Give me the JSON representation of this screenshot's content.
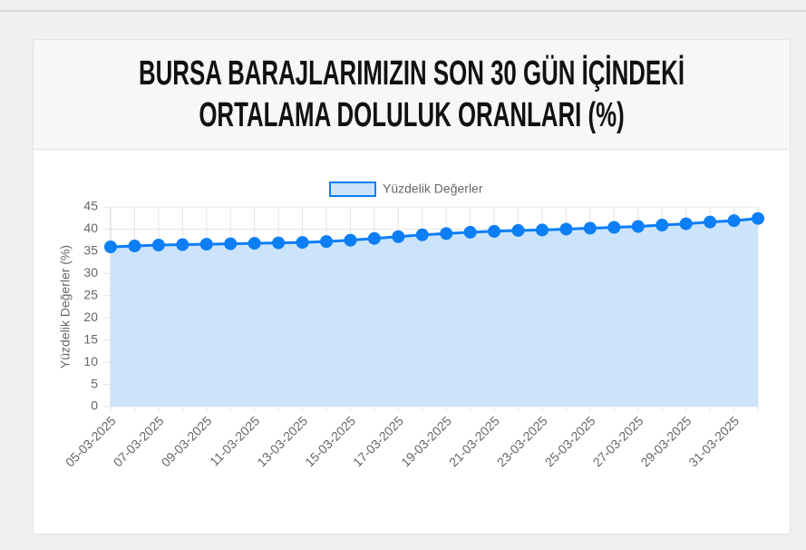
{
  "chart_data": {
    "type": "line",
    "title": "BURSA BARAJLARIMIZIN SON 30 GÜN İÇİNDEKİ ORTALAMA DOLULUK ORANLARI (%)",
    "categories": [
      "05-03-2025",
      null,
      "07-03-2025",
      null,
      "09-03-2025",
      null,
      "11-03-2025",
      null,
      "13-03-2025",
      null,
      "15-03-2025",
      null,
      "17-03-2025",
      null,
      "19-03-2025",
      null,
      "21-03-2025",
      null,
      "23-03-2025",
      null,
      "25-03-2025",
      null,
      "27-03-2025",
      null,
      "29-03-2025",
      null,
      "31-03-2025",
      null
    ],
    "series": [
      {
        "name": "Yüzdelik Değerler",
        "color": "#0d7ef5",
        "fill": "#cce4fb",
        "values": [
          36.0,
          36.2,
          36.4,
          36.5,
          36.6,
          36.7,
          36.8,
          36.9,
          37.0,
          37.2,
          37.5,
          37.9,
          38.3,
          38.7,
          39.0,
          39.3,
          39.5,
          39.7,
          39.8,
          40.0,
          40.2,
          40.4,
          40.6,
          40.9,
          41.2,
          41.6,
          41.9,
          42.4
        ]
      }
    ],
    "y_label": "Yüzdelik Değerler (%)",
    "ylim": [
      0,
      45
    ],
    "yticks": [
      0,
      5,
      10,
      15,
      20,
      25,
      30,
      35,
      40,
      45
    ],
    "grid": true,
    "legend": "top"
  }
}
